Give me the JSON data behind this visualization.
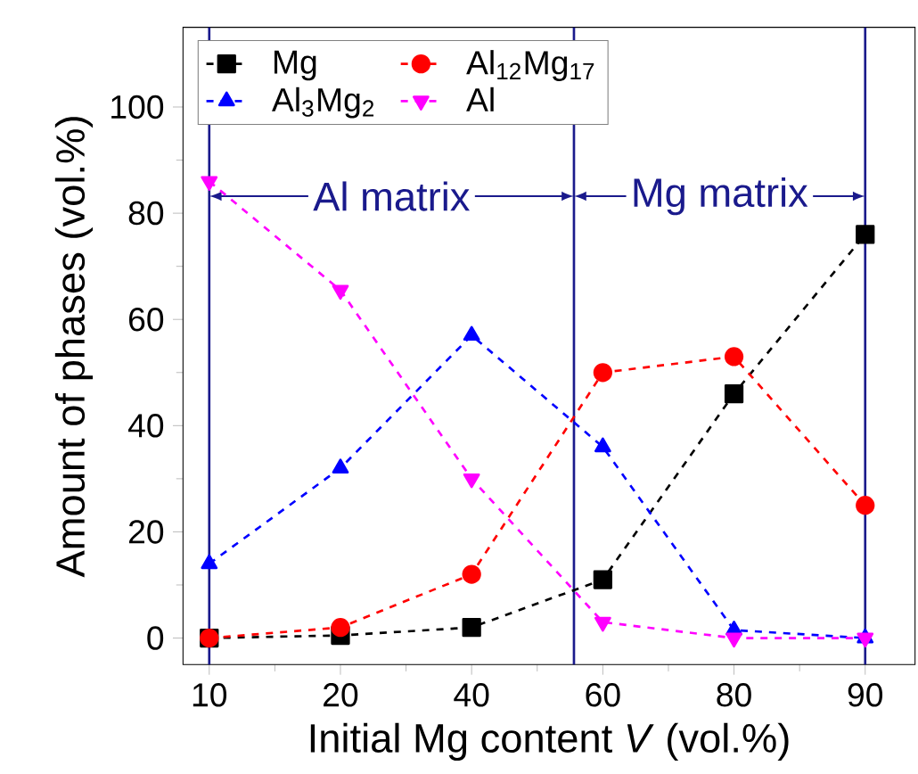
{
  "chart_data": {
    "type": "line",
    "xlabel": "Initial Mg content *V* (vol.%)",
    "ylabel": "Amount of phases (vol.%)",
    "categories": [
      "10",
      "20",
      "40",
      "60",
      "80",
      "90"
    ],
    "ylim": [
      -5,
      115
    ],
    "yticks": [
      0,
      20,
      40,
      60,
      80,
      100
    ],
    "series": [
      {
        "name": "Mg",
        "color": "#000000",
        "marker": "square",
        "values": [
          0,
          0.5,
          2,
          11,
          46,
          76
        ]
      },
      {
        "name": "Al$_{12}$Mg$_{17}$",
        "color": "#ff0000",
        "marker": "circle",
        "values": [
          0,
          2,
          12,
          50,
          53,
          25
        ]
      },
      {
        "name": "Al$_{3}$Mg$_{2}$",
        "color": "#0000ff",
        "marker": "triangle",
        "values": [
          14,
          32,
          57,
          36,
          1.5,
          0
        ]
      },
      {
        "name": "Al",
        "color": "#ff00ff",
        "marker": "triangle-down",
        "values": [
          86,
          65.5,
          30,
          3,
          0,
          0
        ]
      }
    ],
    "line_style": "dashed",
    "legend": "top left",
    "grid": false,
    "ref_lines": [
      {
        "axis": "x",
        "value": "10",
        "color": "#1a1a8c"
      },
      {
        "axis": "x",
        "value": "90",
        "color": "#1a1a8c"
      }
    ],
    "annotations": [
      "Al matrix",
      "Mg matrix"
    ]
  }
}
